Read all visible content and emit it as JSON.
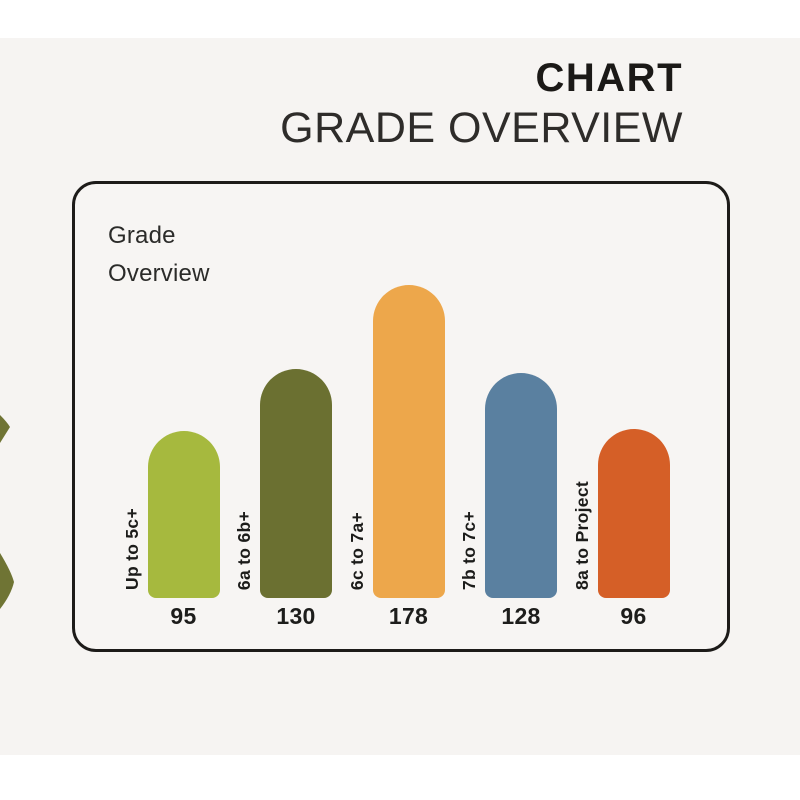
{
  "header": {
    "kicker": "CHART",
    "title": "GRADE OVERVIEW"
  },
  "panel": {
    "title": "Grade\nOverview"
  },
  "chart_data": {
    "type": "bar",
    "title": "Grade Overview",
    "categories": [
      "Up to 5c+",
      "6a to 6b+",
      "6c to 7a+",
      "7b to 7c+",
      "8a to Project"
    ],
    "values": [
      95,
      130,
      178,
      128,
      96
    ],
    "bar_colors": [
      "#a6b93e",
      "#6b7031",
      "#eda74b",
      "#5a80a0",
      "#d55f27"
    ],
    "value_labels_shown": true,
    "xlabel": "",
    "ylabel": "",
    "axes_shown": false,
    "grid": false,
    "legend": "none",
    "bar_style": "rounded-top"
  },
  "colors": {
    "page_background": "#f6f4f2",
    "panel_border": "#1d1b19",
    "kicker_text": "#1b1917",
    "title_text": "#2e2c2a",
    "decorative_olive": "#6f7434"
  }
}
